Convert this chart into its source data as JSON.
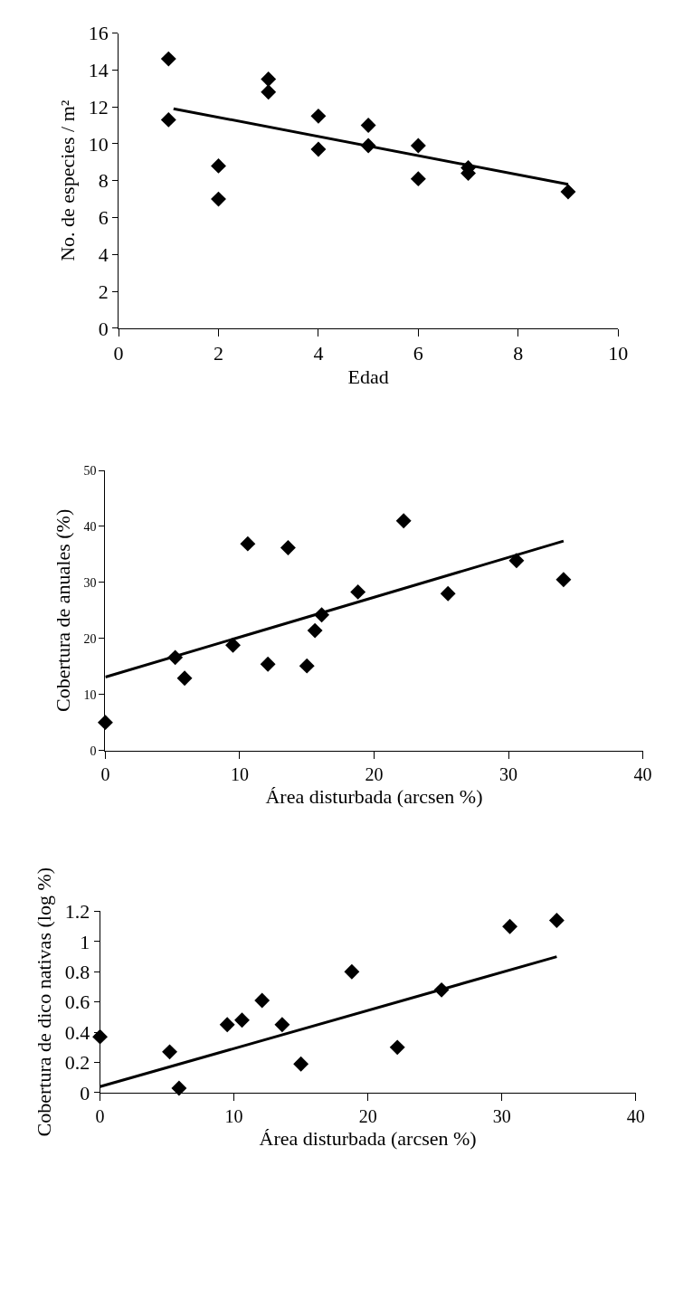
{
  "chart_data": [
    {
      "type": "scatter",
      "xlabel": "Edad",
      "ylabel": "No. de especies / m²",
      "xlim": [
        0,
        10
      ],
      "xticks": [
        0,
        2,
        4,
        6,
        8,
        10
      ],
      "ylim": [
        0,
        16
      ],
      "yticks": [
        0,
        2,
        4,
        6,
        8,
        10,
        12,
        14,
        16
      ],
      "series": [
        {
          "marker": "diamond",
          "color": "#000000",
          "x": [
            1,
            1,
            2,
            2,
            3,
            3,
            4,
            4,
            5,
            5,
            6,
            6,
            7,
            7,
            9
          ],
          "values": [
            14.6,
            11.3,
            8.8,
            7.0,
            13.5,
            12.8,
            11.5,
            9.7,
            11.0,
            9.9,
            9.9,
            8.1,
            8.7,
            8.4,
            7.4
          ]
        },
        {
          "type": "line",
          "color": "#000000",
          "line_style": "solid",
          "x": [
            1.1,
            9
          ],
          "values": [
            11.9,
            7.8
          ]
        }
      ]
    },
    {
      "type": "scatter",
      "xlabel": "Área disturbada (arcsen %)",
      "ylabel": "Cobertura de anuales (%)",
      "xlim": [
        0,
        40
      ],
      "xticks": [
        0,
        10,
        20,
        30,
        40
      ],
      "ylim": [
        0,
        50
      ],
      "yticks": [
        0,
        10,
        20,
        30,
        40,
        50
      ],
      "series": [
        {
          "marker": "diamond",
          "color": "#000000",
          "x": [
            0,
            5.2,
            5.9,
            9.5,
            10.6,
            12.1,
            13.6,
            15.0,
            15.6,
            16.1,
            18.8,
            22.2,
            25.5,
            30.6,
            34.1
          ],
          "values": [
            5,
            16.6,
            12.9,
            18.8,
            36.9,
            15.4,
            36.2,
            15.1,
            21.4,
            24.2,
            28.3,
            41.0,
            28.0,
            33.9,
            30.5
          ]
        },
        {
          "type": "line",
          "color": "#000000",
          "line_style": "solid",
          "x": [
            0,
            34.1
          ],
          "values": [
            13.1,
            37.4
          ]
        }
      ]
    },
    {
      "type": "scatter",
      "xlabel": "Área disturbada (arcsen %)",
      "ylabel": "Cobertura de dico nativas (log %)",
      "xlim": [
        0,
        40
      ],
      "xticks": [
        0,
        10,
        20,
        30,
        40
      ],
      "ylim": [
        0,
        1.2
      ],
      "yticks": [
        0,
        0.2,
        0.4,
        0.6,
        0.8,
        1,
        1.2
      ],
      "series": [
        {
          "marker": "diamond",
          "color": "#000000",
          "x": [
            0,
            5.2,
            5.9,
            9.5,
            10.6,
            12.1,
            13.6,
            15.0,
            18.8,
            22.2,
            25.5,
            30.6,
            34.1
          ],
          "values": [
            0.37,
            0.27,
            0.03,
            0.45,
            0.48,
            0.61,
            0.45,
            0.19,
            0.8,
            0.3,
            0.68,
            1.1,
            1.14
          ]
        },
        {
          "type": "line",
          "color": "#000000",
          "line_style": "solid",
          "x": [
            0,
            34.1
          ],
          "values": [
            0.04,
            0.9
          ]
        }
      ]
    }
  ]
}
